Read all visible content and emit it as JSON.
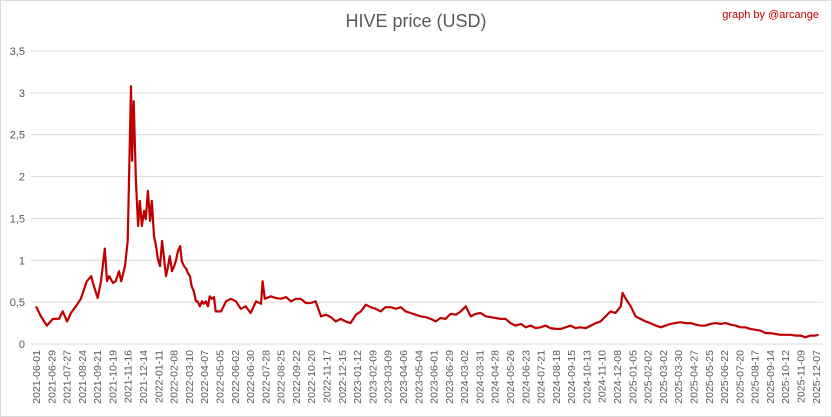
{
  "chart_data": {
    "type": "line",
    "title": "HIVE price (USD)",
    "credit": "graph by @arcange",
    "xlabel": "",
    "ylabel": "",
    "ylim": [
      0,
      3.5
    ],
    "yticks": [
      "0",
      "0,5",
      "1",
      "1,5",
      "2",
      "2,5",
      "3",
      "3,5"
    ],
    "grid": "horizontal",
    "x_unit": "days since 2021-06-01",
    "xticks": [
      "2021-06-01",
      "2021-06-29",
      "2021-07-27",
      "2021-08-24",
      "2021-09-21",
      "2021-10-19",
      "2021-11-16",
      "2021-12-14",
      "2022-01-11",
      "2022-02-08",
      "2022-03-10",
      "2022-04-07",
      "2022-05-05",
      "2022-06-02",
      "2022-06-30",
      "2022-07-28",
      "2022-08-25",
      "2022-09-22",
      "2022-10-20",
      "2022-11-17",
      "2022-12-15",
      "2023-01-12",
      "2023-02-09",
      "2023-03-09",
      "2023-04-06",
      "2023-05-04",
      "2023-06-01",
      "2023-06-29",
      "2024-03-02",
      "2024-03-31",
      "2024-04-28",
      "2024-05-26",
      "2024-06-23",
      "2024-07-21",
      "2024-08-18",
      "2024-09-15",
      "2024-10-13",
      "2024-11-10",
      "2024-12-08",
      "2025-01-05",
      "2025-02-02",
      "2025-03-02",
      "2025-03-30",
      "2025-04-27",
      "2025-05-25",
      "2025-06-22",
      "2025-07-20",
      "2025-08-17",
      "2025-09-14",
      "2025-10-12",
      "2025-11-09",
      "2025-12-07"
    ],
    "series": [
      {
        "name": "HIVE price (USD)",
        "color": "#c00000",
        "points": [
          [
            0,
            0.45
          ],
          [
            9,
            0.33
          ],
          [
            20,
            0.22
          ],
          [
            31,
            0.3
          ],
          [
            42,
            0.3
          ],
          [
            49,
            0.39
          ],
          [
            57,
            0.27
          ],
          [
            64,
            0.37
          ],
          [
            73,
            0.45
          ],
          [
            82,
            0.54
          ],
          [
            93,
            0.75
          ],
          [
            101,
            0.81
          ],
          [
            106,
            0.69
          ],
          [
            113,
            0.55
          ],
          [
            119,
            0.75
          ],
          [
            126,
            1.14
          ],
          [
            130,
            0.75
          ],
          [
            134,
            0.81
          ],
          [
            141,
            0.73
          ],
          [
            146,
            0.75
          ],
          [
            152,
            0.87
          ],
          [
            156,
            0.75
          ],
          [
            163,
            0.93
          ],
          [
            168,
            1.23
          ],
          [
            174,
            3.08
          ],
          [
            176,
            2.19
          ],
          [
            179,
            2.9
          ],
          [
            183,
            1.95
          ],
          [
            187,
            1.41
          ],
          [
            190,
            1.71
          ],
          [
            194,
            1.41
          ],
          [
            198,
            1.59
          ],
          [
            201,
            1.49
          ],
          [
            205,
            1.83
          ],
          [
            209,
            1.47
          ],
          [
            212,
            1.71
          ],
          [
            216,
            1.29
          ],
          [
            220,
            1.17
          ],
          [
            223,
            1.02
          ],
          [
            227,
            0.93
          ],
          [
            231,
            1.23
          ],
          [
            234,
            1.05
          ],
          [
            238,
            0.81
          ],
          [
            242,
            0.93
          ],
          [
            245,
            1.05
          ],
          [
            249,
            0.87
          ],
          [
            253,
            0.93
          ],
          [
            256,
            0.99
          ],
          [
            260,
            1.11
          ],
          [
            264,
            1.17
          ],
          [
            267,
            0.99
          ],
          [
            271,
            0.93
          ],
          [
            275,
            0.9
          ],
          [
            278,
            0.85
          ],
          [
            282,
            0.81
          ],
          [
            285,
            0.69
          ],
          [
            289,
            0.63
          ],
          [
            293,
            0.51
          ],
          [
            296,
            0.51
          ],
          [
            300,
            0.45
          ],
          [
            304,
            0.51
          ],
          [
            307,
            0.48
          ],
          [
            311,
            0.51
          ],
          [
            315,
            0.45
          ],
          [
            318,
            0.57
          ],
          [
            322,
            0.54
          ],
          [
            326,
            0.56
          ],
          [
            329,
            0.39
          ],
          [
            339,
            0.39
          ],
          [
            348,
            0.51
          ],
          [
            357,
            0.54
          ],
          [
            366,
            0.51
          ],
          [
            375,
            0.42
          ],
          [
            384,
            0.45
          ],
          [
            393,
            0.37
          ],
          [
            403,
            0.51
          ],
          [
            412,
            0.48
          ],
          [
            415,
            0.75
          ],
          [
            419,
            0.54
          ],
          [
            430,
            0.57
          ],
          [
            439,
            0.55
          ],
          [
            448,
            0.54
          ],
          [
            458,
            0.56
          ],
          [
            467,
            0.51
          ],
          [
            476,
            0.54
          ],
          [
            485,
            0.54
          ],
          [
            494,
            0.49
          ],
          [
            503,
            0.49
          ],
          [
            512,
            0.51
          ],
          [
            522,
            0.33
          ],
          [
            531,
            0.35
          ],
          [
            540,
            0.32
          ],
          [
            549,
            0.27
          ],
          [
            558,
            0.3
          ],
          [
            567,
            0.27
          ],
          [
            576,
            0.25
          ],
          [
            586,
            0.35
          ],
          [
            595,
            0.39
          ],
          [
            604,
            0.47
          ],
          [
            613,
            0.44
          ],
          [
            622,
            0.42
          ],
          [
            631,
            0.39
          ],
          [
            640,
            0.44
          ],
          [
            650,
            0.44
          ],
          [
            659,
            0.42
          ],
          [
            668,
            0.44
          ],
          [
            677,
            0.39
          ],
          [
            686,
            0.37
          ],
          [
            695,
            0.35
          ],
          [
            705,
            0.33
          ],
          [
            714,
            0.32
          ],
          [
            723,
            0.3
          ],
          [
            732,
            0.27
          ],
          [
            741,
            0.31
          ],
          [
            750,
            0.3
          ],
          [
            759,
            0.36
          ],
          [
            769,
            0.35
          ],
          [
            778,
            0.39
          ],
          [
            787,
            0.45
          ],
          [
            796,
            0.33
          ],
          [
            805,
            0.36
          ],
          [
            814,
            0.37
          ],
          [
            824,
            0.33
          ],
          [
            833,
            0.32
          ],
          [
            842,
            0.31
          ],
          [
            851,
            0.3
          ],
          [
            860,
            0.3
          ],
          [
            869,
            0.25
          ],
          [
            878,
            0.22
          ],
          [
            888,
            0.24
          ],
          [
            897,
            0.2
          ],
          [
            906,
            0.22
          ],
          [
            915,
            0.19
          ],
          [
            924,
            0.2
          ],
          [
            933,
            0.22
          ],
          [
            942,
            0.19
          ],
          [
            952,
            0.18
          ],
          [
            961,
            0.18
          ],
          [
            970,
            0.2
          ],
          [
            979,
            0.22
          ],
          [
            988,
            0.19
          ],
          [
            997,
            0.2
          ],
          [
            1007,
            0.19
          ],
          [
            1016,
            0.22
          ],
          [
            1025,
            0.25
          ],
          [
            1034,
            0.27
          ],
          [
            1043,
            0.33
          ],
          [
            1052,
            0.39
          ],
          [
            1061,
            0.37
          ],
          [
            1071,
            0.45
          ],
          [
            1074,
            0.61
          ],
          [
            1080,
            0.54
          ],
          [
            1089,
            0.45
          ],
          [
            1098,
            0.33
          ],
          [
            1107,
            0.3
          ],
          [
            1116,
            0.27
          ],
          [
            1125,
            0.25
          ],
          [
            1135,
            0.22
          ],
          [
            1144,
            0.2
          ],
          [
            1153,
            0.22
          ],
          [
            1162,
            0.24
          ],
          [
            1171,
            0.25
          ],
          [
            1180,
            0.26
          ],
          [
            1190,
            0.25
          ],
          [
            1199,
            0.25
          ],
          [
            1208,
            0.23
          ],
          [
            1217,
            0.22
          ],
          [
            1226,
            0.22
          ],
          [
            1235,
            0.24
          ],
          [
            1244,
            0.25
          ],
          [
            1254,
            0.24
          ],
          [
            1263,
            0.25
          ],
          [
            1272,
            0.23
          ],
          [
            1281,
            0.22
          ],
          [
            1290,
            0.2
          ],
          [
            1299,
            0.2
          ],
          [
            1308,
            0.18
          ],
          [
            1318,
            0.17
          ],
          [
            1327,
            0.16
          ],
          [
            1336,
            0.13
          ],
          [
            1345,
            0.13
          ],
          [
            1354,
            0.12
          ],
          [
            1363,
            0.11
          ],
          [
            1373,
            0.11
          ],
          [
            1382,
            0.11
          ],
          [
            1391,
            0.1
          ],
          [
            1400,
            0.1
          ],
          [
            1409,
            0.08
          ],
          [
            1418,
            0.1
          ],
          [
            1427,
            0.1
          ],
          [
            1433,
            0.11
          ]
        ]
      }
    ]
  }
}
